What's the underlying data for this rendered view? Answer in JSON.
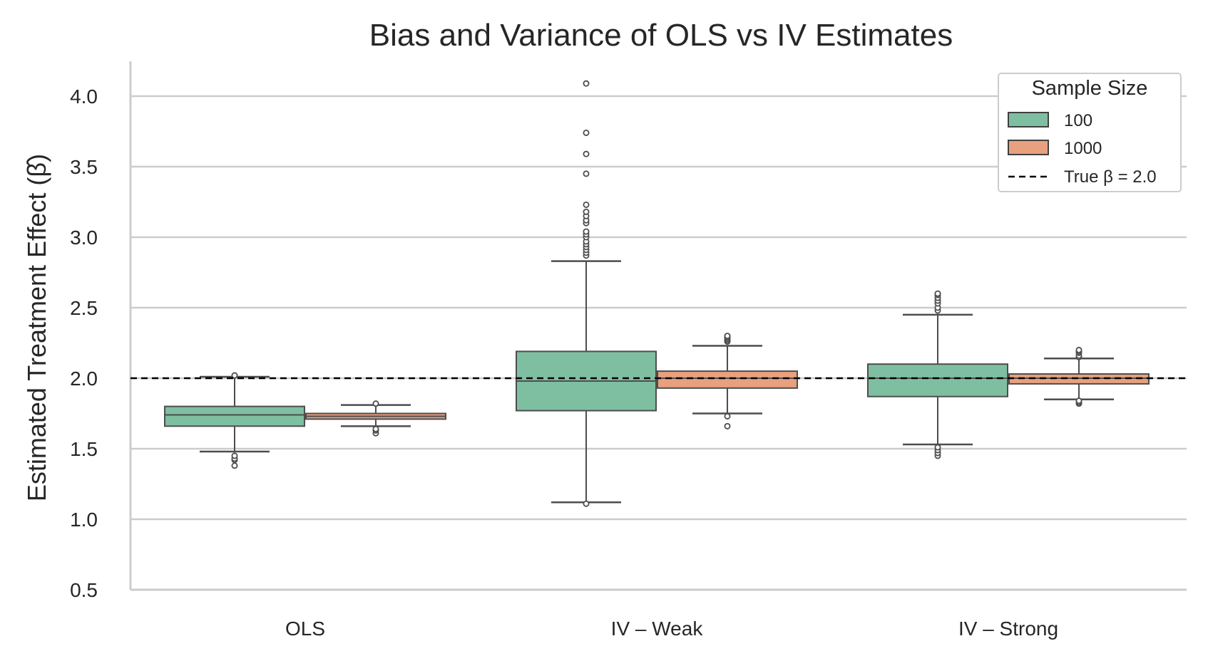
{
  "chart_data": {
    "type": "boxplot",
    "title": "Bias and Variance of OLS vs IV Estimates",
    "xlabel": "",
    "ylabel": "Estimated Treatment Effect (β̂)",
    "ylim": [
      0.5,
      4.2
    ],
    "yticks": [
      "0.5",
      "1.0",
      "1.5",
      "2.0",
      "2.5",
      "3.0",
      "3.5",
      "4.0"
    ],
    "grid": "horizontal",
    "categories": [
      "OLS",
      "IV – Weak",
      "IV – Strong"
    ],
    "reference_line": {
      "y": 2.0,
      "style": "dashed",
      "color": "#000000",
      "label": "True β = 2.0"
    },
    "legend": {
      "title": "Sample Size",
      "placement": "top-right"
    },
    "series": [
      {
        "name": "100",
        "color": "#7fbfa1",
        "boxes": [
          {
            "category": "OLS",
            "whisker_low": 1.48,
            "q1": 1.66,
            "median": 1.74,
            "q3": 1.8,
            "whisker_high": 2.01,
            "outliers": [
              1.38,
              1.42,
              1.43,
              1.45,
              2.02
            ]
          },
          {
            "category": "IV – Weak",
            "whisker_low": 1.12,
            "q1": 1.77,
            "median": 1.98,
            "q3": 2.19,
            "whisker_high": 2.83,
            "outliers": [
              1.11,
              2.87,
              2.89,
              2.91,
              2.93,
              2.95,
              2.97,
              3.0,
              3.02,
              3.04,
              3.1,
              3.12,
              3.15,
              3.18,
              3.23,
              3.45,
              3.59,
              3.74,
              4.09
            ]
          },
          {
            "category": "IV – Strong",
            "whisker_low": 1.53,
            "q1": 1.87,
            "median": 2.0,
            "q3": 2.1,
            "whisker_high": 2.45,
            "outliers": [
              1.45,
              1.47,
              1.49,
              1.51,
              2.48,
              2.5,
              2.53,
              2.55,
              2.57,
              2.59,
              2.6
            ]
          }
        ]
      },
      {
        "name": "1000",
        "color": "#e8a07e",
        "boxes": [
          {
            "category": "OLS",
            "whisker_low": 1.66,
            "q1": 1.71,
            "median": 1.73,
            "q3": 1.75,
            "whisker_high": 1.81,
            "outliers": [
              1.61,
              1.63,
              1.64,
              1.82
            ]
          },
          {
            "category": "IV – Weak",
            "whisker_low": 1.75,
            "q1": 1.93,
            "median": 2.0,
            "q3": 2.05,
            "whisker_high": 2.23,
            "outliers": [
              1.66,
              1.73,
              2.26,
              2.27,
              2.28,
              2.29,
              2.3
            ]
          },
          {
            "category": "IV – Strong",
            "whisker_low": 1.85,
            "q1": 1.96,
            "median": 2.0,
            "q3": 2.03,
            "whisker_high": 2.14,
            "outliers": [
              1.82,
              1.83,
              1.84,
              2.15,
              2.16,
              2.18,
              2.19,
              2.2
            ]
          }
        ]
      }
    ]
  }
}
